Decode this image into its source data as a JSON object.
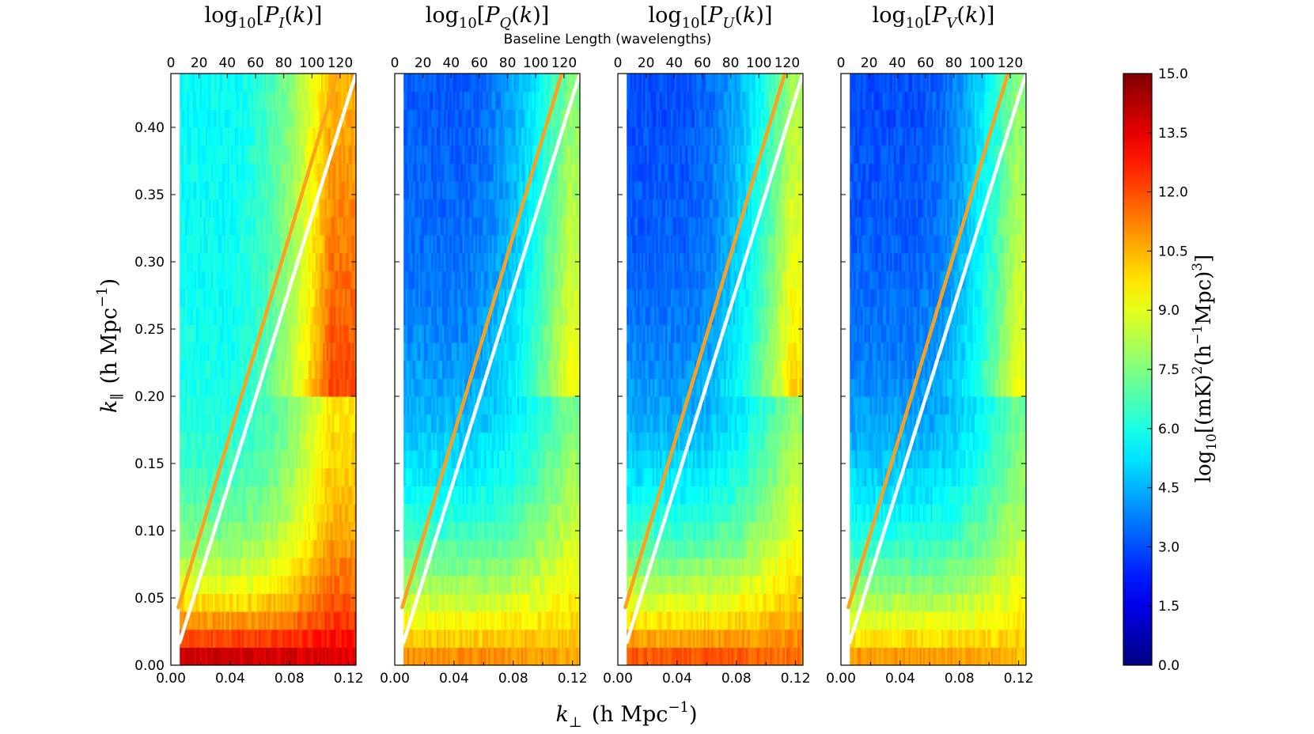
{
  "figure": {
    "top_axis_label": "Baseline Length (wavelengths)",
    "x_label": {
      "sym": "k",
      "sub": "⊥",
      "unit": "(h Mpc",
      "sup": "−1",
      "close": ")"
    },
    "y_label": {
      "sym": "k",
      "sub": "∥",
      "unit": "(h Mpc",
      "sup": "−1",
      "close": ")"
    },
    "colorbar_label": {
      "pre": "log",
      "sub": "10",
      "mid": "[(mK)",
      "sup1": "2",
      "mid2": "(h",
      "sup2": "−1",
      "mid3": "Mpc)",
      "sup3": "3",
      "close": "]"
    }
  },
  "colors": {
    "horizon_line": "#ffffff",
    "buffer_line": "#ff9f1c",
    "colormap": "jet"
  },
  "chart_data": [
    {
      "type": "heatmap",
      "title": {
        "pre": "log",
        "sub": "10",
        "open": "[P",
        "stokes": "I",
        "close": "(k)]"
      },
      "xlabel": "k⊥ (h Mpc⁻¹)",
      "ylabel": "k∥ (h Mpc⁻¹)",
      "xlim": [
        0.0,
        0.125
      ],
      "ylim": [
        0.0,
        0.44
      ],
      "x_ticks": [
        "0.00",
        "0.04",
        "0.08",
        "0.12"
      ],
      "y_ticks": [
        "0.00",
        "0.05",
        "0.10",
        "0.15",
        "0.20",
        "0.25",
        "0.30",
        "0.35",
        "0.40"
      ],
      "top_axis": {
        "label": "Baseline Length (wavelengths)",
        "ticks": [
          "0",
          "20",
          "40",
          "60",
          "80",
          "100",
          "120"
        ]
      },
      "data_xrange": [
        0.006,
        0.125
      ],
      "model": {
        "level_at_k0": 14.7,
        "floor": 5.7,
        "decay_k": 0.06,
        "ramp_x": [
          0.035,
          0.115
        ],
        "ramp_y": 0.4
      },
      "lines": [
        {
          "name": "horizon",
          "color": "#ffffff",
          "points": [
            [
              0.006,
              0.017
            ],
            [
              0.125,
              0.44
            ]
          ]
        },
        {
          "name": "buffer",
          "color": "#ff9f1c",
          "points": [
            [
              0.005,
              0.043
            ],
            [
              0.125,
              0.485
            ]
          ]
        }
      ]
    },
    {
      "type": "heatmap",
      "title": {
        "pre": "log",
        "sub": "10",
        "open": "[P",
        "stokes": "Q",
        "close": "(k)]"
      },
      "xlabel": "k⊥ (h Mpc⁻¹)",
      "ylabel": "k∥ (h Mpc⁻¹)",
      "xlim": [
        0.0,
        0.125
      ],
      "ylim": [
        0.0,
        0.44
      ],
      "x_ticks": [
        "0.00",
        "0.04",
        "0.08",
        "0.12"
      ],
      "y_ticks": [],
      "top_axis": {
        "label": "Baseline Length (wavelengths)",
        "ticks": [
          "0",
          "20",
          "40",
          "60",
          "80",
          "100",
          "120"
        ]
      },
      "data_xrange": [
        0.006,
        0.125
      ],
      "model": {
        "level_at_k0": 11.6,
        "floor": 3.0,
        "decay_k": 0.11,
        "ramp_x": [
          0.04,
          0.125
        ],
        "ramp_y": 0.4
      },
      "lines": [
        {
          "name": "horizon",
          "color": "#ffffff",
          "points": [
            [
              0.006,
              0.017
            ],
            [
              0.125,
              0.44
            ]
          ]
        },
        {
          "name": "buffer",
          "color": "#ff9f1c",
          "points": [
            [
              0.005,
              0.043
            ],
            [
              0.125,
              0.485
            ]
          ]
        }
      ]
    },
    {
      "type": "heatmap",
      "title": {
        "pre": "log",
        "sub": "10",
        "open": "[P",
        "stokes": "U",
        "close": "(k)]"
      },
      "xlabel": "k⊥ (h Mpc⁻¹)",
      "ylabel": "k∥ (h Mpc⁻¹)",
      "xlim": [
        0.0,
        0.125
      ],
      "ylim": [
        0.0,
        0.44
      ],
      "x_ticks": [
        "0.00",
        "0.04",
        "0.08",
        "0.12"
      ],
      "y_ticks": [],
      "top_axis": {
        "label": "Baseline Length (wavelengths)",
        "ticks": [
          "0",
          "20",
          "40",
          "60",
          "80",
          "100",
          "120"
        ]
      },
      "data_xrange": [
        0.006,
        0.125
      ],
      "model": {
        "level_at_k0": 12.5,
        "floor": 2.9,
        "decay_k": 0.1,
        "ramp_x": [
          0.04,
          0.125
        ],
        "ramp_y": 0.4
      },
      "lines": [
        {
          "name": "horizon",
          "color": "#ffffff",
          "points": [
            [
              0.006,
              0.017
            ],
            [
              0.125,
              0.44
            ]
          ]
        },
        {
          "name": "buffer",
          "color": "#ff9f1c",
          "points": [
            [
              0.005,
              0.043
            ],
            [
              0.125,
              0.485
            ]
          ]
        }
      ]
    },
    {
      "type": "heatmap",
      "title": {
        "pre": "log",
        "sub": "10",
        "open": "[P",
        "stokes": "V",
        "close": "(k)]"
      },
      "xlabel": "k⊥ (h Mpc⁻¹)",
      "ylabel": "k∥ (h Mpc⁻¹)",
      "xlim": [
        0.0,
        0.125
      ],
      "ylim": [
        0.0,
        0.44
      ],
      "x_ticks": [
        "0.00",
        "0.04",
        "0.08",
        "0.12"
      ],
      "y_ticks": [],
      "top_axis": {
        "label": "Baseline Length (wavelengths)",
        "ticks": [
          "0",
          "20",
          "40",
          "60",
          "80",
          "100",
          "120"
        ]
      },
      "data_xrange": [
        0.006,
        0.125
      ],
      "model": {
        "level_at_k0": 11.4,
        "floor": 2.9,
        "decay_k": 0.1,
        "ramp_x": [
          0.045,
          0.125
        ],
        "ramp_y": 0.43
      },
      "lines": [
        {
          "name": "horizon",
          "color": "#ffffff",
          "points": [
            [
              0.006,
              0.017
            ],
            [
              0.125,
              0.44
            ]
          ]
        },
        {
          "name": "buffer",
          "color": "#ff9f1c",
          "points": [
            [
              0.005,
              0.043
            ],
            [
              0.125,
              0.485
            ]
          ]
        }
      ]
    }
  ],
  "colorbar": {
    "range": [
      0.0,
      15.0
    ],
    "ticks": [
      "0.0",
      "1.5",
      "3.0",
      "4.5",
      "6.0",
      "7.5",
      "9.0",
      "10.5",
      "12.0",
      "13.5",
      "15.0"
    ]
  }
}
